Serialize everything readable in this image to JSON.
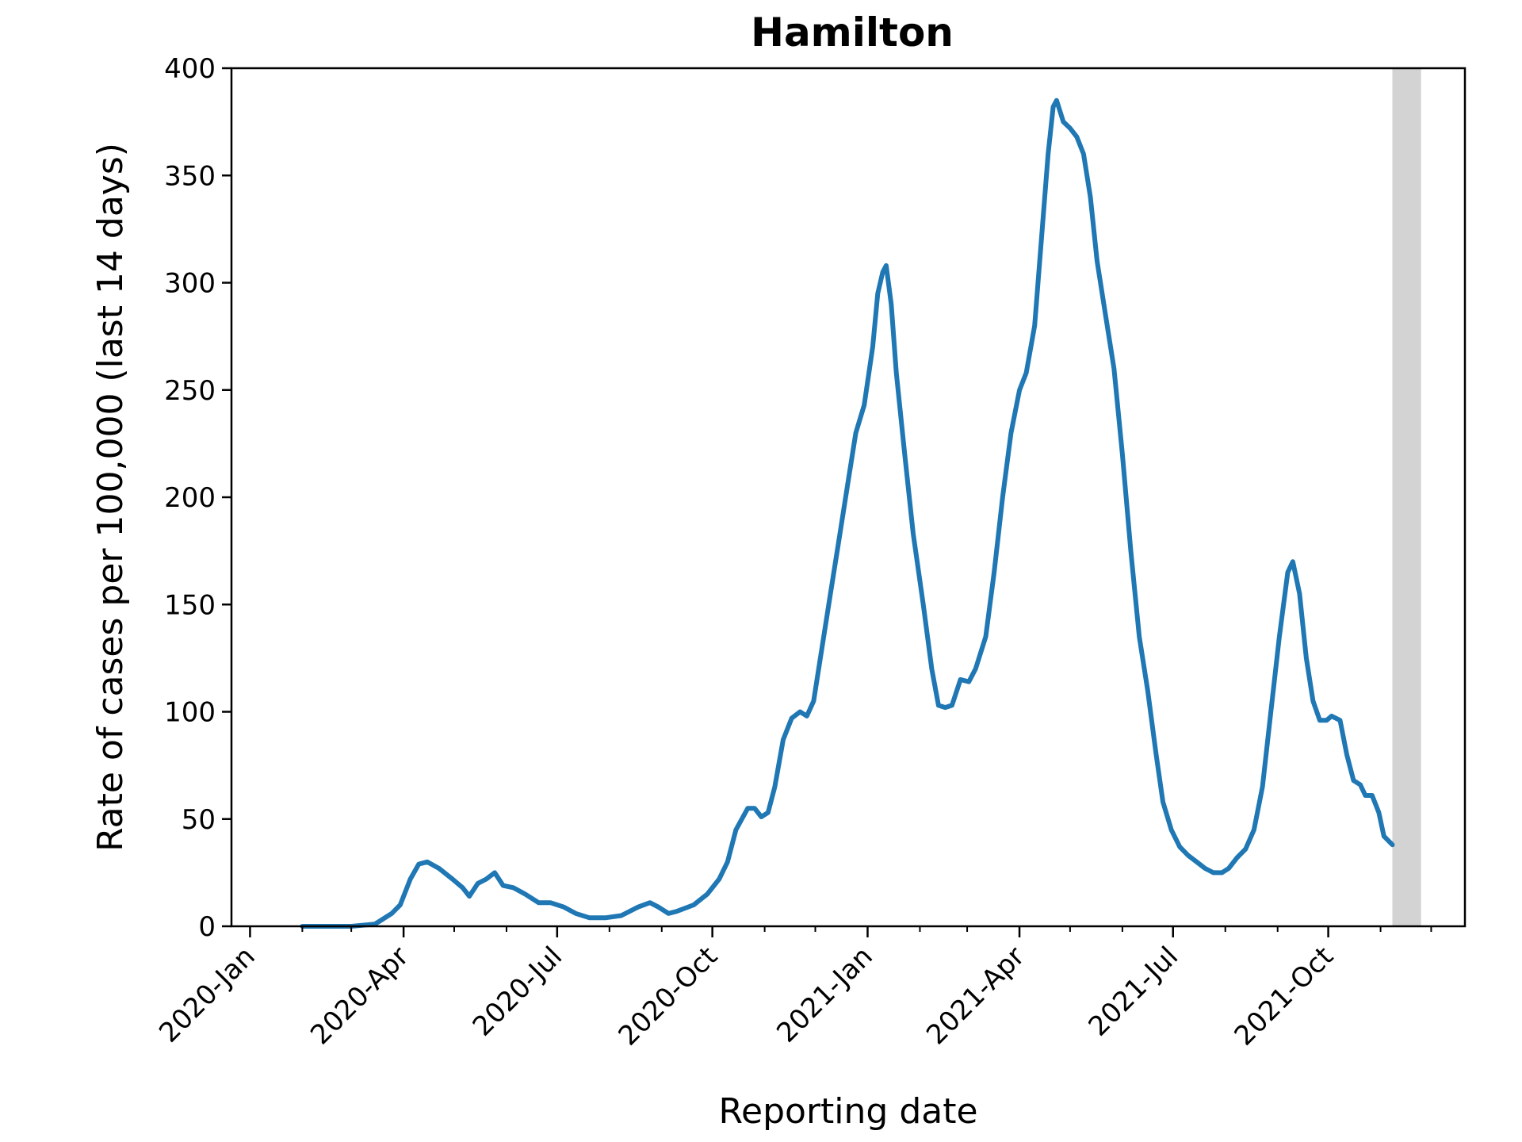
{
  "chart_data": {
    "type": "line",
    "title": "Hamilton",
    "xlabel": "Reporting date",
    "ylabel": "Rate of cases per 100,000 (last 14 days)",
    "xlim": [
      "2019-12-21",
      "2021-12-21"
    ],
    "ylim": [
      0,
      400
    ],
    "grid": false,
    "line_color": "#1f77b4",
    "shade_color": "#d3d3d3",
    "shaded_region": [
      "2021-11-08",
      "2021-11-25"
    ],
    "x_ticks": [
      {
        "date": "2020-01-01",
        "label": "2020-Jan"
      },
      {
        "date": "2020-04-01",
        "label": "2020-Apr"
      },
      {
        "date": "2020-07-01",
        "label": "2020-Jul"
      },
      {
        "date": "2020-10-01",
        "label": "2020-Oct"
      },
      {
        "date": "2021-01-01",
        "label": "2021-Jan"
      },
      {
        "date": "2021-04-01",
        "label": "2021-Apr"
      },
      {
        "date": "2021-07-01",
        "label": "2021-Jul"
      },
      {
        "date": "2021-10-01",
        "label": "2021-Oct"
      }
    ],
    "x_minor_ticks": [
      "2020-02-01",
      "2020-03-01",
      "2020-05-01",
      "2020-06-01",
      "2020-08-01",
      "2020-09-01",
      "2020-11-01",
      "2020-12-01",
      "2021-02-01",
      "2021-03-01",
      "2021-05-01",
      "2021-06-01",
      "2021-08-01",
      "2021-09-01",
      "2021-11-01",
      "2021-12-01"
    ],
    "y_ticks": [
      0,
      50,
      100,
      150,
      200,
      250,
      300,
      350,
      400
    ],
    "series": [
      {
        "points": [
          [
            "2020-02-01",
            0
          ],
          [
            "2020-03-01",
            0
          ],
          [
            "2020-03-15",
            1
          ],
          [
            "2020-03-25",
            6
          ],
          [
            "2020-03-30",
            10
          ],
          [
            "2020-04-05",
            22
          ],
          [
            "2020-04-10",
            29
          ],
          [
            "2020-04-15",
            30
          ],
          [
            "2020-04-22",
            27
          ],
          [
            "2020-04-30",
            22
          ],
          [
            "2020-05-06",
            18
          ],
          [
            "2020-05-10",
            14
          ],
          [
            "2020-05-15",
            20
          ],
          [
            "2020-05-20",
            22
          ],
          [
            "2020-05-25",
            25
          ],
          [
            "2020-05-30",
            19
          ],
          [
            "2020-06-05",
            18
          ],
          [
            "2020-06-12",
            15
          ],
          [
            "2020-06-20",
            11
          ],
          [
            "2020-06-27",
            11
          ],
          [
            "2020-07-05",
            9
          ],
          [
            "2020-07-12",
            6
          ],
          [
            "2020-07-20",
            4
          ],
          [
            "2020-07-30",
            4
          ],
          [
            "2020-08-08",
            5
          ],
          [
            "2020-08-18",
            9
          ],
          [
            "2020-08-25",
            11
          ],
          [
            "2020-08-30",
            9
          ],
          [
            "2020-09-05",
            6
          ],
          [
            "2020-09-10",
            7
          ],
          [
            "2020-09-20",
            10
          ],
          [
            "2020-09-28",
            15
          ],
          [
            "2020-10-05",
            22
          ],
          [
            "2020-10-10",
            30
          ],
          [
            "2020-10-15",
            45
          ],
          [
            "2020-10-22",
            55
          ],
          [
            "2020-10-26",
            55
          ],
          [
            "2020-10-30",
            51
          ],
          [
            "2020-11-03",
            53
          ],
          [
            "2020-11-07",
            65
          ],
          [
            "2020-11-12",
            87
          ],
          [
            "2020-11-17",
            97
          ],
          [
            "2020-11-22",
            100
          ],
          [
            "2020-11-26",
            98
          ],
          [
            "2020-11-30",
            105
          ],
          [
            "2020-12-05",
            130
          ],
          [
            "2020-12-10",
            155
          ],
          [
            "2020-12-15",
            180
          ],
          [
            "2020-12-20",
            205
          ],
          [
            "2020-12-25",
            230
          ],
          [
            "2020-12-30",
            243
          ],
          [
            "2021-01-04",
            270
          ],
          [
            "2021-01-07",
            295
          ],
          [
            "2021-01-10",
            305
          ],
          [
            "2021-01-12",
            308
          ],
          [
            "2021-01-15",
            290
          ],
          [
            "2021-01-18",
            258
          ],
          [
            "2021-01-23",
            220
          ],
          [
            "2021-01-28",
            183
          ],
          [
            "2021-02-03",
            150
          ],
          [
            "2021-02-08",
            120
          ],
          [
            "2021-02-12",
            103
          ],
          [
            "2021-02-16",
            102
          ],
          [
            "2021-02-20",
            103
          ],
          [
            "2021-02-25",
            115
          ],
          [
            "2021-03-02",
            114
          ],
          [
            "2021-03-06",
            120
          ],
          [
            "2021-03-12",
            135
          ],
          [
            "2021-03-17",
            165
          ],
          [
            "2021-03-22",
            200
          ],
          [
            "2021-03-27",
            230
          ],
          [
            "2021-04-01",
            250
          ],
          [
            "2021-04-05",
            258
          ],
          [
            "2021-04-10",
            280
          ],
          [
            "2021-04-14",
            320
          ],
          [
            "2021-04-18",
            360
          ],
          [
            "2021-04-21",
            382
          ],
          [
            "2021-04-23",
            385
          ],
          [
            "2021-04-27",
            375
          ],
          [
            "2021-05-01",
            372
          ],
          [
            "2021-05-05",
            368
          ],
          [
            "2021-05-09",
            360
          ],
          [
            "2021-05-13",
            340
          ],
          [
            "2021-05-17",
            310
          ],
          [
            "2021-05-22",
            285
          ],
          [
            "2021-05-27",
            260
          ],
          [
            "2021-06-01",
            220
          ],
          [
            "2021-06-06",
            175
          ],
          [
            "2021-06-11",
            135
          ],
          [
            "2021-06-16",
            110
          ],
          [
            "2021-06-21",
            80
          ],
          [
            "2021-06-25",
            58
          ],
          [
            "2021-06-30",
            45
          ],
          [
            "2021-07-05",
            37
          ],
          [
            "2021-07-10",
            33
          ],
          [
            "2021-07-15",
            30
          ],
          [
            "2021-07-20",
            27
          ],
          [
            "2021-07-25",
            25
          ],
          [
            "2021-07-30",
            25
          ],
          [
            "2021-08-03",
            27
          ],
          [
            "2021-08-08",
            32
          ],
          [
            "2021-08-13",
            36
          ],
          [
            "2021-08-18",
            45
          ],
          [
            "2021-08-23",
            65
          ],
          [
            "2021-08-28",
            100
          ],
          [
            "2021-09-02",
            135
          ],
          [
            "2021-09-07",
            165
          ],
          [
            "2021-09-10",
            170
          ],
          [
            "2021-09-14",
            155
          ],
          [
            "2021-09-18",
            125
          ],
          [
            "2021-09-22",
            105
          ],
          [
            "2021-09-26",
            96
          ],
          [
            "2021-09-30",
            96
          ],
          [
            "2021-10-03",
            98
          ],
          [
            "2021-10-08",
            96
          ],
          [
            "2021-10-12",
            80
          ],
          [
            "2021-10-16",
            68
          ],
          [
            "2021-10-20",
            66
          ],
          [
            "2021-10-23",
            61
          ],
          [
            "2021-10-27",
            61
          ],
          [
            "2021-10-31",
            53
          ],
          [
            "2021-11-03",
            42
          ],
          [
            "2021-11-08",
            38
          ]
        ]
      }
    ]
  }
}
